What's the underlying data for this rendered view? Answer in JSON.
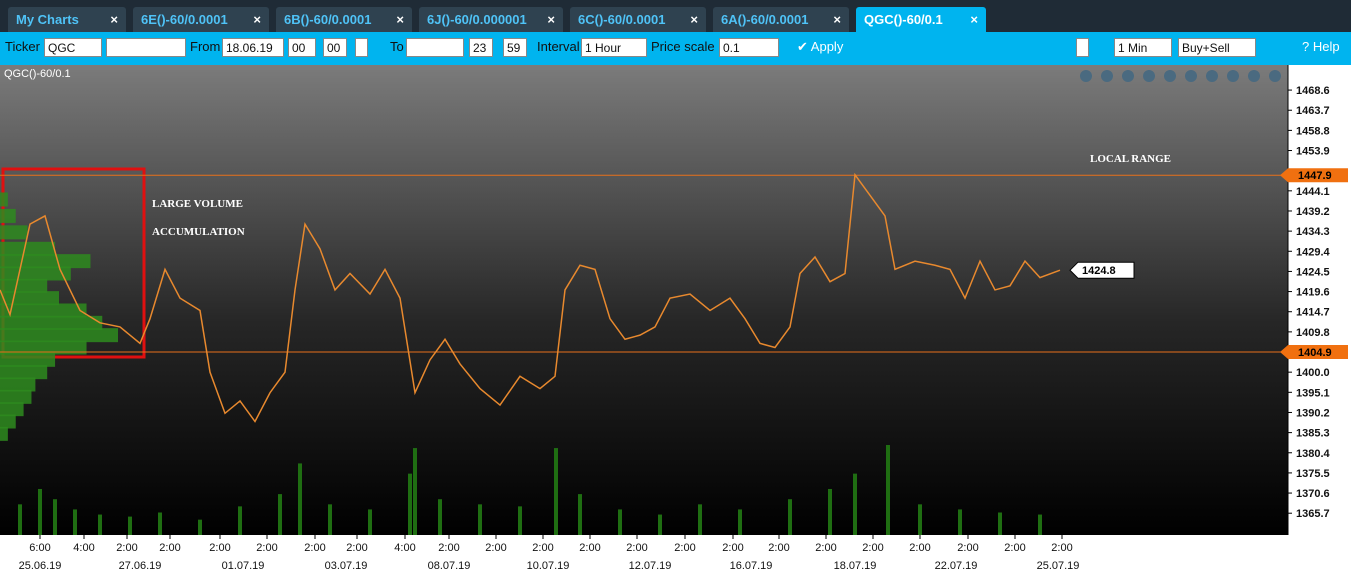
{
  "tabs": [
    "My Charts",
    "6E()-60/0.0001",
    "6B()-60/0.0001",
    "6J()-60/0.000001",
    "6C()-60/0.0001",
    "6A()-60/0.0001",
    "QGC()-60/0.1"
  ],
  "toolbar": {
    "ticker_label": "Ticker",
    "ticker": "QGC",
    "from_label": "From",
    "from_date": "18.06.19",
    "from_hour": "00",
    "from_min": "00",
    "to_label": "To",
    "to_hour": "23",
    "to_min": "59",
    "interval_label": "Interval",
    "interval": "1 Hour",
    "price_scale_label": "Price scale",
    "price_scale": "0.1",
    "apply": "Apply",
    "timeframe": "1 Min",
    "side": "Buy+Sell",
    "help": "Help"
  },
  "chart_data": {
    "type": "line",
    "title": "QGC()-60/0.1",
    "color": "#e8892e",
    "x": [
      0,
      10,
      20,
      30,
      45,
      60,
      80,
      100,
      120,
      140,
      150,
      165,
      180,
      200,
      210,
      225,
      240,
      255,
      270,
      285,
      295,
      305,
      320,
      335,
      350,
      370,
      385,
      400,
      415,
      430,
      445,
      460,
      480,
      500,
      520,
      540,
      555,
      565,
      580,
      595,
      610,
      625,
      640,
      655,
      670,
      690,
      710,
      730,
      745,
      760,
      775,
      790,
      800,
      815,
      830,
      845,
      855,
      870,
      885,
      895,
      915,
      935,
      950,
      965,
      980,
      995,
      1010,
      1025,
      1040,
      1060
    ],
    "values": [
      1420,
      1414,
      1425,
      1436,
      1438,
      1425,
      1415,
      1412,
      1411,
      1407,
      1413,
      1425,
      1418,
      1415,
      1400,
      1390,
      1393,
      1388,
      1395,
      1400,
      1420,
      1436,
      1430,
      1420,
      1424,
      1419,
      1425,
      1418,
      1395,
      1403,
      1408,
      1402,
      1396,
      1392,
      1399,
      1396,
      1399,
      1420,
      1426,
      1425,
      1413,
      1408,
      1409,
      1411,
      1418,
      1419,
      1415,
      1418,
      1413,
      1407,
      1406,
      1411,
      1424,
      1428,
      1422,
      1424,
      1448,
      1443,
      1438,
      1425,
      1427,
      1426,
      1425,
      1418,
      1427,
      1420,
      1421,
      1427,
      1423,
      1424.8
    ],
    "xlim": [
      0,
      1288
    ],
    "ylim": [
      1360.4,
      1474.7
    ],
    "yticks": [
      1468.6,
      1463.7,
      1458.8,
      1453.9,
      1444.1,
      1439.2,
      1434.3,
      1429.4,
      1424.5,
      1419.6,
      1414.7,
      1409.8,
      {
        "value": 1400,
        "label": "1400.0"
      },
      1395.1,
      1390.2,
      1385.3,
      1380.4,
      1375.5,
      1370.6,
      1365.7
    ],
    "xticks": [
      {
        "value": 40,
        "label": "6:00"
      },
      {
        "value": 84,
        "label": "4:00"
      },
      {
        "value": 127,
        "label": "2:00"
      },
      {
        "value": 170,
        "label": "2:00"
      },
      {
        "value": 220,
        "label": "2:00"
      },
      {
        "value": 267,
        "label": "2:00"
      },
      {
        "value": 315,
        "label": "2:00"
      },
      {
        "value": 357,
        "label": "2:00"
      },
      {
        "value": 405,
        "label": "4:00"
      },
      {
        "value": 449,
        "label": "2:00"
      },
      {
        "value": 496,
        "label": "2:00"
      },
      {
        "value": 543,
        "label": "2:00"
      },
      {
        "value": 590,
        "label": "2:00"
      },
      {
        "value": 637,
        "label": "2:00"
      },
      {
        "value": 685,
        "label": "2:00"
      },
      {
        "value": 733,
        "label": "2:00"
      },
      {
        "value": 779,
        "label": "2:00"
      },
      {
        "value": 826,
        "label": "2:00"
      },
      {
        "value": 873,
        "label": "2:00"
      },
      {
        "value": 920,
        "label": "2:00"
      },
      {
        "value": 968,
        "label": "2:00"
      },
      {
        "value": 1015,
        "label": "2:00"
      },
      {
        "value": 1062,
        "label": "2:00"
      }
    ],
    "date_ticks": [
      {
        "value": 40,
        "label": "25.06.19"
      },
      {
        "value": 140,
        "label": "27.06.19"
      },
      {
        "value": 243,
        "label": "01.07.19"
      },
      {
        "value": 346,
        "label": "03.07.19"
      },
      {
        "value": 449,
        "label": "08.07.19"
      },
      {
        "value": 548,
        "label": "10.07.19"
      },
      {
        "value": 650,
        "label": "12.07.19"
      },
      {
        "value": 751,
        "label": "16.07.19"
      },
      {
        "value": 855,
        "label": "18.07.19"
      },
      {
        "value": 956,
        "label": "22.07.19"
      },
      {
        "value": 1058,
        "label": "25.07.19"
      }
    ],
    "levels": [
      {
        "value": 1447.9,
        "label": "1447.9"
      },
      {
        "value": 1404.9,
        "label": "1404.9"
      }
    ],
    "last_price": {
      "value": 1424.8,
      "label": "1424.8"
    },
    "annotations": [
      "LOCAL RANGE",
      "LARGE VOLUME",
      "ACCUMULATION"
    ],
    "volume": {
      "x": [
        20,
        40,
        55,
        75,
        100,
        130,
        160,
        200,
        240,
        280,
        300,
        330,
        370,
        410,
        415,
        440,
        480,
        520,
        556,
        580,
        620,
        660,
        700,
        740,
        790,
        830,
        855,
        888,
        920,
        960,
        1000,
        1040
      ],
      "values": [
        30,
        45,
        35,
        25,
        20,
        18,
        22,
        15,
        28,
        40,
        70,
        30,
        25,
        60,
        85,
        35,
        30,
        28,
        85,
        40,
        25,
        20,
        30,
        25,
        35,
        45,
        60,
        88,
        30,
        25,
        22,
        20
      ]
    },
    "volume_profile": {
      "prices": [
        1442,
        1438,
        1434,
        1430,
        1427,
        1424,
        1421,
        1418,
        1415,
        1412,
        1409,
        1406,
        1403,
        1400,
        1397,
        1394,
        1391,
        1388,
        1385
      ],
      "values": [
        10,
        20,
        35,
        70,
        115,
        90,
        60,
        75,
        110,
        130,
        150,
        110,
        70,
        60,
        45,
        40,
        30,
        20,
        10
      ]
    }
  }
}
